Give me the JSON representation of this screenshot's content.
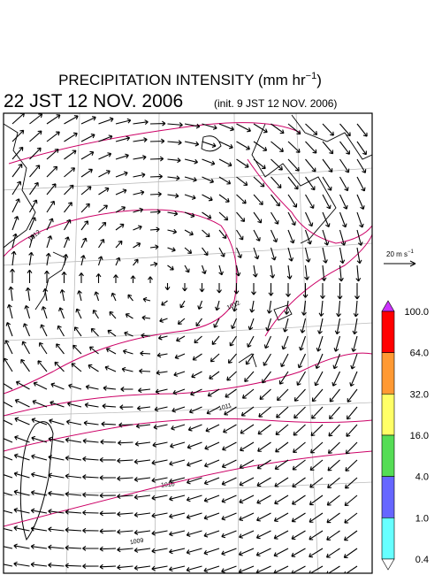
{
  "header": {
    "title": [
      "PRECIPITATION INTENSITY (mm hr",
      "−1",
      ")"
    ],
    "time": "22 JST 12 NOV. 2006",
    "init": "(init. 9 JST 12 NOV. 2006)"
  },
  "scale": {
    "label": [
      "20 m s",
      "−1"
    ]
  },
  "colorbar": {
    "colors": [
      "#cc33ff",
      "#ff0000",
      "#ff9933",
      "#ffff66",
      "#55dd55",
      "#6666ff",
      "#66ffff",
      "#ffffff"
    ],
    "labels": [
      "100.0",
      "64.0",
      "32.0",
      "16.0",
      "4.0",
      "1.0",
      "0.4"
    ]
  },
  "isobars": [
    {
      "label": "1012",
      "color": "#cc0066"
    },
    {
      "label": "1012",
      "color": "#cc0066"
    },
    {
      "label": "1011",
      "color": "#cc0066"
    },
    {
      "label": "1010",
      "color": "#cc0066"
    },
    {
      "label": "1009",
      "color": "#cc0066"
    }
  ]
}
